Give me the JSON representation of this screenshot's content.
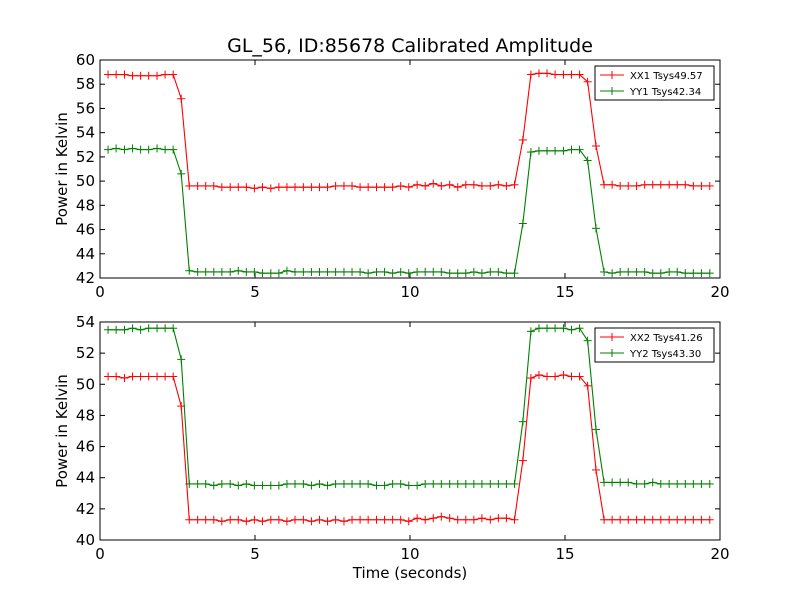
{
  "figure": {
    "title": "GL_56, ID:85678 Calibrated Amplitude",
    "xlabel": "Time (seconds)"
  },
  "chart_data": [
    {
      "type": "line",
      "title": "GL_56, ID:85678 Calibrated Amplitude",
      "xlabel": "",
      "ylabel": "Power in Kelvin",
      "xlim": [
        0,
        20
      ],
      "ylim": [
        42,
        60
      ],
      "xticks": [
        0,
        5,
        10,
        15,
        20
      ],
      "yticks": [
        42,
        44,
        46,
        48,
        50,
        52,
        54,
        56,
        58,
        60
      ],
      "grid": false,
      "legend_position": "top-right",
      "series": [
        {
          "name": "XX1 Tsys49.57",
          "color": "#ff0000",
          "x": [
            0.26,
            0.52,
            0.79,
            1.05,
            1.31,
            1.57,
            1.84,
            2.1,
            2.36,
            2.62,
            2.88,
            3.15,
            3.41,
            3.67,
            3.93,
            4.2,
            4.46,
            4.72,
            4.98,
            5.24,
            5.51,
            5.77,
            6.03,
            6.29,
            6.56,
            6.82,
            7.08,
            7.34,
            7.6,
            7.87,
            8.13,
            8.39,
            8.65,
            8.92,
            9.18,
            9.44,
            9.7,
            9.96,
            10.23,
            10.49,
            10.75,
            11.01,
            11.28,
            11.54,
            11.8,
            12.06,
            12.32,
            12.59,
            12.85,
            13.11,
            13.37,
            13.64,
            13.9,
            14.16,
            14.42,
            14.68,
            14.95,
            15.21,
            15.47,
            15.73,
            16.0,
            16.26,
            16.52,
            16.78,
            17.04,
            17.31,
            17.57,
            17.83,
            18.09,
            18.36,
            18.62,
            18.88,
            19.14,
            19.4,
            19.67
          ],
          "values": [
            58.8,
            58.8,
            58.8,
            58.7,
            58.7,
            58.7,
            58.7,
            58.8,
            58.8,
            56.8,
            49.6,
            49.6,
            49.6,
            49.6,
            49.5,
            49.5,
            49.5,
            49.5,
            49.4,
            49.5,
            49.4,
            49.5,
            49.5,
            49.5,
            49.5,
            49.5,
            49.5,
            49.5,
            49.6,
            49.6,
            49.6,
            49.5,
            49.5,
            49.5,
            49.5,
            49.5,
            49.6,
            49.5,
            49.7,
            49.6,
            49.8,
            49.6,
            49.7,
            49.5,
            49.7,
            49.7,
            49.6,
            49.6,
            49.7,
            49.6,
            49.7,
            53.4,
            58.8,
            58.9,
            58.9,
            58.8,
            58.8,
            58.8,
            58.8,
            58.2,
            52.9,
            49.7,
            49.7,
            49.6,
            49.6,
            49.6,
            49.7,
            49.7,
            49.7,
            49.7,
            49.7,
            49.7,
            49.6,
            49.6,
            49.6
          ]
        },
        {
          "name": "YY1 Tsys42.34",
          "color": "#008000",
          "x": [
            0.26,
            0.52,
            0.79,
            1.05,
            1.31,
            1.57,
            1.84,
            2.1,
            2.36,
            2.62,
            2.88,
            3.15,
            3.41,
            3.67,
            3.93,
            4.2,
            4.46,
            4.72,
            4.98,
            5.24,
            5.51,
            5.77,
            6.03,
            6.29,
            6.56,
            6.82,
            7.08,
            7.34,
            7.6,
            7.87,
            8.13,
            8.39,
            8.65,
            8.92,
            9.18,
            9.44,
            9.7,
            9.96,
            10.23,
            10.49,
            10.75,
            11.01,
            11.28,
            11.54,
            11.8,
            12.06,
            12.32,
            12.59,
            12.85,
            13.11,
            13.37,
            13.64,
            13.9,
            14.16,
            14.42,
            14.68,
            14.95,
            15.21,
            15.47,
            15.73,
            16.0,
            16.26,
            16.52,
            16.78,
            17.04,
            17.31,
            17.57,
            17.83,
            18.09,
            18.36,
            18.62,
            18.88,
            19.14,
            19.4,
            19.67
          ],
          "values": [
            52.6,
            52.7,
            52.6,
            52.7,
            52.6,
            52.6,
            52.7,
            52.6,
            52.6,
            50.6,
            42.6,
            42.5,
            42.5,
            42.5,
            42.5,
            42.5,
            42.6,
            42.5,
            42.5,
            42.4,
            42.4,
            42.4,
            42.6,
            42.5,
            42.5,
            42.5,
            42.5,
            42.5,
            42.5,
            42.5,
            42.5,
            42.5,
            42.4,
            42.5,
            42.5,
            42.4,
            42.5,
            42.4,
            42.5,
            42.5,
            42.5,
            42.5,
            42.4,
            42.4,
            42.4,
            42.5,
            42.4,
            42.5,
            42.5,
            42.4,
            42.4,
            46.5,
            52.4,
            52.5,
            52.5,
            52.5,
            52.5,
            52.6,
            52.6,
            51.7,
            46.1,
            42.5,
            42.4,
            42.5,
            42.5,
            42.5,
            42.5,
            42.4,
            42.4,
            42.5,
            42.5,
            42.4,
            42.4,
            42.4,
            42.4
          ]
        }
      ]
    },
    {
      "type": "line",
      "title": "",
      "xlabel": "Time (seconds)",
      "ylabel": "Power in Kelvin",
      "xlim": [
        0,
        20
      ],
      "ylim": [
        40,
        54
      ],
      "xticks": [
        0,
        5,
        10,
        15,
        20
      ],
      "yticks": [
        40,
        42,
        44,
        46,
        48,
        50,
        52,
        54
      ],
      "grid": false,
      "legend_position": "top-right",
      "series": [
        {
          "name": "XX2 Tsys41.26",
          "color": "#ff0000",
          "x": [
            0.26,
            0.52,
            0.79,
            1.05,
            1.31,
            1.57,
            1.84,
            2.1,
            2.36,
            2.62,
            2.88,
            3.15,
            3.41,
            3.67,
            3.93,
            4.2,
            4.46,
            4.72,
            4.98,
            5.24,
            5.51,
            5.77,
            6.03,
            6.29,
            6.56,
            6.82,
            7.08,
            7.34,
            7.6,
            7.87,
            8.13,
            8.39,
            8.65,
            8.92,
            9.18,
            9.44,
            9.7,
            9.96,
            10.23,
            10.49,
            10.75,
            11.01,
            11.28,
            11.54,
            11.8,
            12.06,
            12.32,
            12.59,
            12.85,
            13.11,
            13.37,
            13.64,
            13.9,
            14.16,
            14.42,
            14.68,
            14.95,
            15.21,
            15.47,
            15.73,
            16.0,
            16.26,
            16.52,
            16.78,
            17.04,
            17.31,
            17.57,
            17.83,
            18.09,
            18.36,
            18.62,
            18.88,
            19.14,
            19.4,
            19.67
          ],
          "values": [
            50.5,
            50.5,
            50.4,
            50.5,
            50.5,
            50.5,
            50.5,
            50.5,
            50.5,
            48.6,
            41.3,
            41.3,
            41.3,
            41.3,
            41.2,
            41.3,
            41.3,
            41.2,
            41.3,
            41.2,
            41.3,
            41.3,
            41.2,
            41.3,
            41.3,
            41.2,
            41.3,
            41.2,
            41.3,
            41.2,
            41.3,
            41.3,
            41.3,
            41.3,
            41.3,
            41.3,
            41.3,
            41.2,
            41.4,
            41.3,
            41.4,
            41.5,
            41.4,
            41.3,
            41.3,
            41.3,
            41.4,
            41.3,
            41.4,
            41.4,
            41.3,
            45.1,
            50.4,
            50.6,
            50.5,
            50.5,
            50.6,
            50.5,
            50.5,
            49.9,
            44.5,
            41.3,
            41.3,
            41.3,
            41.3,
            41.3,
            41.3,
            41.3,
            41.3,
            41.3,
            41.3,
            41.3,
            41.3,
            41.3,
            41.3
          ]
        },
        {
          "name": "YY2 Tsys43.30",
          "color": "#008000",
          "x": [
            0.26,
            0.52,
            0.79,
            1.05,
            1.31,
            1.57,
            1.84,
            2.1,
            2.36,
            2.62,
            2.88,
            3.15,
            3.41,
            3.67,
            3.93,
            4.2,
            4.46,
            4.72,
            4.98,
            5.24,
            5.51,
            5.77,
            6.03,
            6.29,
            6.56,
            6.82,
            7.08,
            7.34,
            7.6,
            7.87,
            8.13,
            8.39,
            8.65,
            8.92,
            9.18,
            9.44,
            9.7,
            9.96,
            10.23,
            10.49,
            10.75,
            11.01,
            11.28,
            11.54,
            11.8,
            12.06,
            12.32,
            12.59,
            12.85,
            13.11,
            13.37,
            13.64,
            13.9,
            14.16,
            14.42,
            14.68,
            14.95,
            15.21,
            15.47,
            15.73,
            16.0,
            16.26,
            16.52,
            16.78,
            17.04,
            17.31,
            17.57,
            17.83,
            18.09,
            18.36,
            18.62,
            18.88,
            19.14,
            19.4,
            19.67
          ],
          "values": [
            53.5,
            53.5,
            53.5,
            53.6,
            53.5,
            53.6,
            53.6,
            53.6,
            53.6,
            51.6,
            43.6,
            43.6,
            43.6,
            43.5,
            43.6,
            43.6,
            43.5,
            43.6,
            43.5,
            43.5,
            43.5,
            43.5,
            43.6,
            43.6,
            43.6,
            43.5,
            43.6,
            43.5,
            43.6,
            43.6,
            43.6,
            43.6,
            43.6,
            43.5,
            43.5,
            43.6,
            43.6,
            43.5,
            43.5,
            43.6,
            43.6,
            43.6,
            43.6,
            43.6,
            43.6,
            43.6,
            43.6,
            43.6,
            43.6,
            43.6,
            43.6,
            47.6,
            53.4,
            53.6,
            53.6,
            53.6,
            53.6,
            53.5,
            53.6,
            52.8,
            47.1,
            43.7,
            43.7,
            43.7,
            43.7,
            43.6,
            43.6,
            43.7,
            43.6,
            43.6,
            43.6,
            43.6,
            43.6,
            43.6,
            43.6
          ]
        }
      ]
    }
  ]
}
